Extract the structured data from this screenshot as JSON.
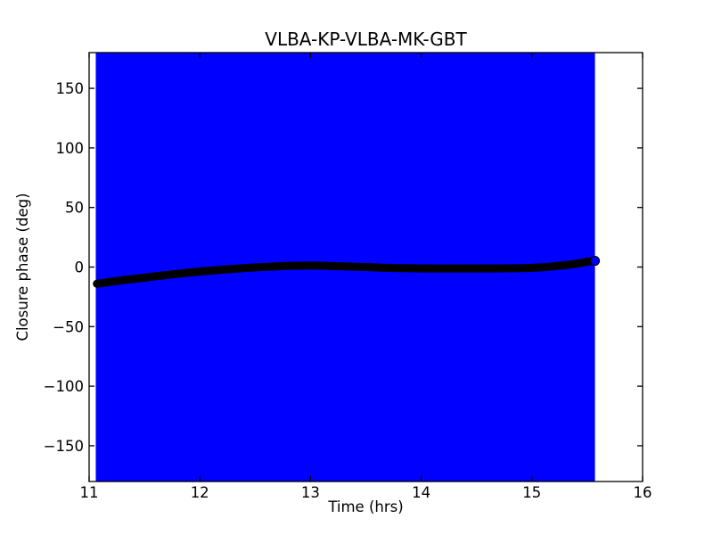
{
  "figure": {
    "title": "VLBA-KP-VLBA-MK-GBT",
    "xlabel": "Time (hrs)",
    "ylabel": "Closure phase (deg)"
  },
  "chart_data": {
    "type": "line",
    "title": "VLBA-KP-VLBA-MK-GBT",
    "xlabel": "Time (hrs)",
    "ylabel": "Closure phase (deg)",
    "xlim": [
      11,
      16
    ],
    "ylim": [
      -180,
      180
    ],
    "xticks": [
      11,
      12,
      13,
      14,
      15,
      16
    ],
    "yticks": [
      -150,
      -100,
      -50,
      0,
      50,
      100,
      150
    ],
    "grid": false,
    "legend": null,
    "colors": {
      "error_band": "#0000ff",
      "line": "#000000",
      "axis": "#000000",
      "background": "#ffffff"
    },
    "error_band": {
      "description": "vertical error-bar band filling full y-range",
      "x_start": 11.06,
      "x_end": 15.57,
      "y_start": -180,
      "y_end": 180
    },
    "series": [
      {
        "name": "closure-phase",
        "marker": "filled-circle",
        "color": "#000000",
        "x": [
          11.07,
          11.15,
          11.25,
          11.35,
          11.45,
          11.55,
          11.65,
          11.75,
          11.85,
          11.95,
          12.05,
          12.15,
          12.25,
          12.35,
          12.45,
          12.55,
          12.65,
          12.75,
          12.85,
          12.95,
          13.05,
          13.15,
          13.25,
          13.35,
          13.45,
          13.55,
          13.65,
          13.75,
          13.85,
          13.95,
          14.1,
          14.3,
          14.5,
          14.7,
          14.9,
          15.0,
          15.1,
          15.2,
          15.3,
          15.4,
          15.5,
          15.57
        ],
        "y": [
          -14.0,
          -13.0,
          -11.7,
          -10.5,
          -9.4,
          -8.3,
          -7.2,
          -6.2,
          -5.2,
          -4.2,
          -3.4,
          -2.6,
          -1.9,
          -1.2,
          -0.6,
          -0.1,
          0.4,
          0.8,
          1.1,
          1.2,
          1.2,
          1.0,
          0.7,
          0.4,
          0.1,
          -0.2,
          -0.5,
          -0.8,
          -1.0,
          -1.1,
          -1.2,
          -1.2,
          -1.2,
          -1.1,
          -1.0,
          -0.7,
          -0.2,
          0.6,
          1.6,
          2.8,
          4.5,
          5.2
        ]
      }
    ],
    "end_marker": {
      "x": 15.57,
      "y": 5.2,
      "fill": "#0000ff",
      "edge": "#000000"
    }
  }
}
